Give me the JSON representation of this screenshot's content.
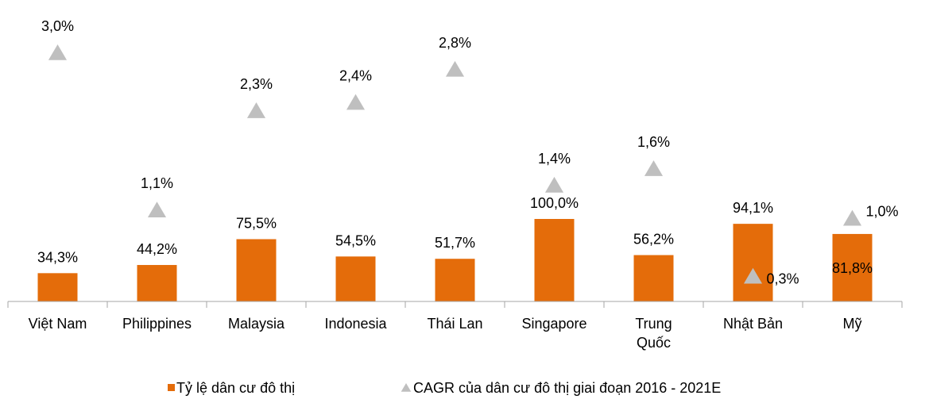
{
  "chart_data": {
    "type": "bar",
    "categories": [
      "Việt Nam",
      "Philippines",
      "Malaysia",
      "Indonesia",
      "Thái Lan",
      "Singapore",
      "Trung Quốc",
      "Nhật Bản",
      "Mỹ"
    ],
    "series": [
      {
        "name": "Tỷ lệ dân cư đô thị",
        "type": "bar",
        "color": "#e46c0a",
        "values": [
          34.3,
          44.2,
          75.5,
          54.5,
          51.7,
          100.0,
          56.2,
          94.1,
          81.8
        ],
        "value_labels": [
          "34,3%",
          "44,2%",
          "75,5%",
          "54,5%",
          "51,7%",
          "100,0%",
          "56,2%",
          "94,1%",
          "81,8%"
        ]
      },
      {
        "name": "CAGR của dân cư đô thị giai đoạn 2016 - 2021E",
        "type": "marker",
        "axis": "y2",
        "color": "#bfbfbf",
        "values": [
          3.0,
          1.1,
          2.3,
          2.4,
          2.8,
          1.4,
          1.6,
          0.3,
          1.0
        ],
        "value_labels": [
          "3,0%",
          "1,1%",
          "2,3%",
          "2,4%",
          "2,8%",
          "1,4%",
          "1,6%",
          "0,3%",
          "1,0%"
        ]
      }
    ],
    "ylim": [
      0,
      100
    ],
    "y2lim": [
      0,
      3
    ],
    "legend": "bottom"
  }
}
